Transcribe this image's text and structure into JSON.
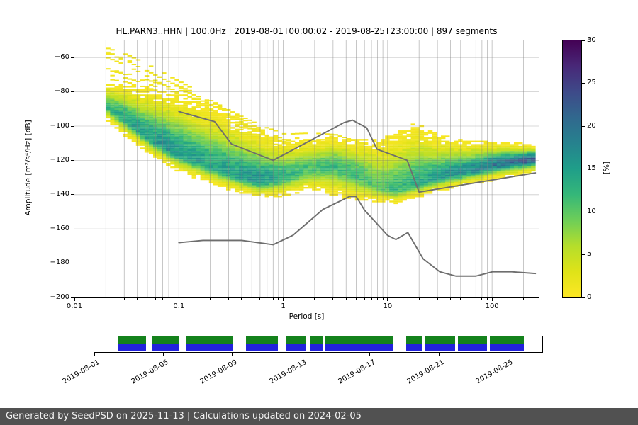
{
  "footer": {
    "text": "Generated by SeedPSD on 2025-11-13 | Calculations updated on 2024-02-05",
    "bg_color": "#515151",
    "text_color": "#f2f2f2"
  },
  "chart_data": {
    "type": "heatmap",
    "title": "HL.PARN3..HHN | 100.0Hz | 2019-08-01T00:00:02 - 2019-08-25T23:00:00 | 897 segments",
    "xlabel": "Period [s]",
    "ylabel": "Amplitude [m²/s⁴/Hz] [dB]",
    "x_scale": "log",
    "xlim": [
      0.01,
      280
    ],
    "ylim": [
      -200,
      -50
    ],
    "grid": true,
    "x_ticks": [
      {
        "v": 0.01,
        "label": "0.01"
      },
      {
        "v": 0.1,
        "label": "0.1"
      },
      {
        "v": 1,
        "label": "1"
      },
      {
        "v": 10,
        "label": "10"
      },
      {
        "v": 100,
        "label": "100"
      }
    ],
    "y_ticks": [
      {
        "v": -60,
        "label": "−60"
      },
      {
        "v": -80,
        "label": "−80"
      },
      {
        "v": -100,
        "label": "−100"
      },
      {
        "v": -120,
        "label": "−120"
      },
      {
        "v": -140,
        "label": "−140"
      },
      {
        "v": -160,
        "label": "−160"
      },
      {
        "v": -180,
        "label": "−180"
      },
      {
        "v": -200,
        "label": "−200"
      }
    ],
    "colorbar": {
      "label": "[%]",
      "min": 0,
      "max": 30,
      "ticks": [
        {
          "v": 0,
          "label": "0"
        },
        {
          "v": 5,
          "label": "5"
        },
        {
          "v": 10,
          "label": "10"
        },
        {
          "v": 15,
          "label": "15"
        },
        {
          "v": 20,
          "label": "20"
        },
        {
          "v": 25,
          "label": "25"
        },
        {
          "v": 30,
          "label": "30"
        }
      ],
      "colormap": "viridis_r",
      "stops": [
        [
          0,
          "#440154"
        ],
        [
          0.1,
          "#482878"
        ],
        [
          0.2,
          "#3e4a89"
        ],
        [
          0.3,
          "#31688e"
        ],
        [
          0.4,
          "#26828e"
        ],
        [
          0.5,
          "#1f9e89"
        ],
        [
          0.6,
          "#35b779"
        ],
        [
          0.7,
          "#6ece58"
        ],
        [
          0.8,
          "#b5de2b"
        ],
        [
          0.9,
          "#dfe318"
        ],
        [
          1,
          "#fde725"
        ]
      ]
    },
    "ppsd": {
      "periods": [
        0.02,
        0.03,
        0.05,
        0.08,
        0.12,
        0.2,
        0.35,
        0.6,
        1.0,
        1.8,
        3.0,
        5.0,
        8.0,
        12.0,
        18.0,
        30.0,
        60.0,
        120.0,
        260.0
      ],
      "mode_db": [
        -88,
        -96,
        -106,
        -113,
        -118,
        -123,
        -128,
        -132,
        -130,
        -125,
        -123,
        -128,
        -135,
        -137,
        -134,
        -130,
        -126,
        -122,
        -119
      ],
      "upper_db": [
        -77,
        -79,
        -83,
        -87,
        -90,
        -95,
        -102,
        -108,
        -112,
        -110,
        -109,
        -111,
        -112,
        -110,
        -105,
        -110,
        -112,
        -112,
        -113
      ],
      "lower_db": [
        -95,
        -104,
        -114,
        -122,
        -127,
        -132,
        -137,
        -140,
        -139,
        -136,
        -138,
        -141,
        -143,
        -144,
        -141,
        -137,
        -133,
        -129,
        -126
      ],
      "peak_percent": [
        12,
        14,
        15,
        16,
        15,
        14,
        15,
        16,
        13,
        11,
        12,
        12,
        10,
        12,
        13,
        15,
        17,
        20,
        22
      ]
    },
    "noise_models": {
      "color": "#6e6e6e",
      "nhnm": {
        "periods": [
          0.1,
          0.22,
          0.32,
          0.8,
          3.8,
          4.6,
          6.3,
          7.9,
          15.4,
          20.0,
          260.0
        ],
        "db": [
          -91.5,
          -97.4,
          -110.5,
          -120.0,
          -98.0,
          -96.5,
          -101.0,
          -113.5,
          -120.0,
          -138.5,
          -127.3
        ]
      },
      "nlnm": {
        "periods": [
          0.1,
          0.17,
          0.4,
          0.8,
          1.24,
          2.4,
          4.3,
          5.0,
          6.0,
          10.0,
          12.0,
          15.6,
          21.9,
          31.6,
          45.0,
          70.0,
          101.0,
          154.0,
          260.0
        ],
        "db": [
          -168.0,
          -166.7,
          -166.7,
          -169.2,
          -163.7,
          -148.6,
          -141.1,
          -141.1,
          -149.0,
          -163.8,
          -166.2,
          -162.1,
          -177.5,
          -185.0,
          -187.5,
          -187.5,
          -185.0,
          -185.0,
          -186.0
        ]
      }
    }
  },
  "timeline": {
    "range_days": 26,
    "tick_labels": [
      {
        "day": 0,
        "label": "2019-08-01"
      },
      {
        "day": 4,
        "label": "2019-08-05"
      },
      {
        "day": 8,
        "label": "2019-08-09"
      },
      {
        "day": 12,
        "label": "2019-08-13"
      },
      {
        "day": 16,
        "label": "2019-08-17"
      },
      {
        "day": 20,
        "label": "2019-08-21"
      },
      {
        "day": 24,
        "label": "2019-08-25"
      }
    ],
    "segments": [
      {
        "start": 1.4,
        "end": 3.0
      },
      {
        "start": 3.35,
        "end": 4.9
      },
      {
        "start": 5.3,
        "end": 8.05
      },
      {
        "start": 8.8,
        "end": 10.65
      },
      {
        "start": 11.15,
        "end": 12.25
      },
      {
        "start": 12.5,
        "end": 13.25
      },
      {
        "start": 13.35,
        "end": 17.3
      },
      {
        "start": 18.1,
        "end": 19.0
      },
      {
        "start": 19.2,
        "end": 20.95
      },
      {
        "start": 21.1,
        "end": 22.8
      },
      {
        "start": 22.95,
        "end": 24.95
      }
    ],
    "colors": {
      "data": "#14821c",
      "coverage": "#2222dd"
    }
  }
}
